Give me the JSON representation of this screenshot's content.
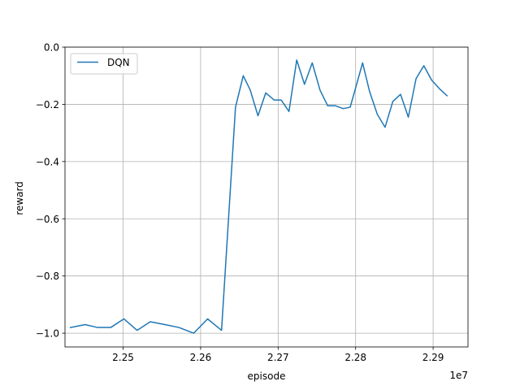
{
  "chart_data": {
    "type": "line",
    "title": "",
    "xlabel": "episode",
    "ylabel": "reward",
    "x_offset_label": "1e7",
    "xlim": [
      2.2425,
      2.2945
    ],
    "ylim": [
      -1.048,
      0.0
    ],
    "xticks": [
      2.25,
      2.26,
      2.27,
      2.28,
      2.29
    ],
    "xtick_labels": [
      "2.25",
      "2.26",
      "2.27",
      "2.28",
      "2.29"
    ],
    "yticks": [
      0.0,
      -0.2,
      -0.4,
      -0.6,
      -0.8,
      -1.0
    ],
    "ytick_labels": [
      "0.0",
      "−0.2",
      "−0.4",
      "−0.6",
      "−0.8",
      "−1.0"
    ],
    "grid": true,
    "legend_position": "top-left",
    "series": [
      {
        "name": "DQN",
        "color": "#1f77b4",
        "x": [
          2.2432,
          2.2451,
          2.2467,
          2.2484,
          2.2501,
          2.2518,
          2.2535,
          2.2554,
          2.2572,
          2.2591,
          2.2609,
          2.2627,
          2.2645,
          2.2655,
          2.2664,
          2.2674,
          2.2684,
          2.2695,
          2.2704,
          2.2714,
          2.2724,
          2.2734,
          2.2744,
          2.2754,
          2.2764,
          2.2774,
          2.2784,
          2.2793,
          2.2809,
          2.2818,
          2.2828,
          2.2838,
          2.2848,
          2.2858,
          2.2868,
          2.2878,
          2.2888,
          2.2898,
          2.2908,
          2.2918
        ],
        "y": [
          -0.98,
          -0.97,
          -0.98,
          -0.98,
          -0.95,
          -0.99,
          -0.96,
          -0.97,
          -0.98,
          -1.0,
          -0.95,
          -0.99,
          -0.21,
          -0.1,
          -0.15,
          -0.24,
          -0.16,
          -0.185,
          -0.185,
          -0.225,
          -0.045,
          -0.13,
          -0.055,
          -0.15,
          -0.205,
          -0.205,
          -0.215,
          -0.21,
          -0.055,
          -0.155,
          -0.235,
          -0.28,
          -0.19,
          -0.165,
          -0.245,
          -0.11,
          -0.065,
          -0.115,
          -0.145,
          -0.17
        ]
      }
    ]
  }
}
